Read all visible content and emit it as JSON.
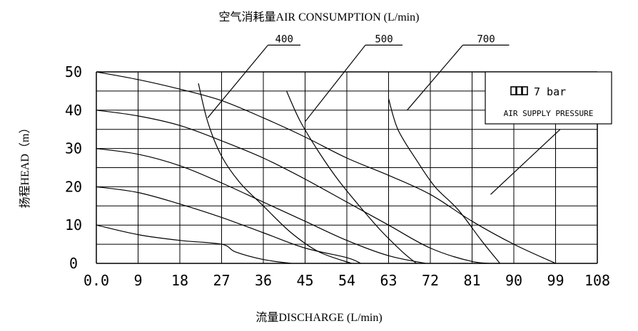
{
  "chart_data": {
    "type": "line",
    "title": "空气消耗量AIR CONSUMPTION (L/min)",
    "xlabel": "流量DISCHARGE (L/min)",
    "ylabel": "扬程HEAD（m）",
    "xlim": [
      0,
      108
    ],
    "ylim": [
      0,
      50
    ],
    "x_ticks": [
      "0.0",
      "9",
      "18",
      "27",
      "36",
      "45",
      "54",
      "63",
      "72",
      "81",
      "90",
      "99",
      "108"
    ],
    "y_ticks": [
      "0",
      "10",
      "20",
      "30",
      "40",
      "50"
    ],
    "grid": true,
    "pressure_series": [
      {
        "points": [
          [
            0,
            50
          ],
          [
            9,
            48
          ],
          [
            18,
            45.5
          ],
          [
            27,
            42.5
          ],
          [
            36,
            38
          ],
          [
            45,
            33
          ],
          [
            54,
            27.5
          ],
          [
            63,
            23
          ],
          [
            72,
            18
          ],
          [
            81,
            11
          ],
          [
            90,
            5
          ],
          [
            99,
            0
          ]
        ]
      },
      {
        "points": [
          [
            0,
            40
          ],
          [
            9,
            38.5
          ],
          [
            18,
            36
          ],
          [
            27,
            32
          ],
          [
            36,
            27.5
          ],
          [
            45,
            22
          ],
          [
            54,
            16
          ],
          [
            63,
            10
          ],
          [
            72,
            4
          ],
          [
            81,
            0.5
          ],
          [
            87,
            0
          ]
        ]
      },
      {
        "points": [
          [
            0,
            30
          ],
          [
            9,
            28.5
          ],
          [
            18,
            25.5
          ],
          [
            27,
            21
          ],
          [
            36,
            16
          ],
          [
            45,
            11
          ],
          [
            54,
            6
          ],
          [
            63,
            2
          ],
          [
            71,
            0
          ]
        ]
      },
      {
        "points": [
          [
            0,
            20
          ],
          [
            9,
            18.5
          ],
          [
            18,
            15.5
          ],
          [
            27,
            12
          ],
          [
            36,
            8
          ],
          [
            45,
            4
          ],
          [
            54,
            1.5
          ],
          [
            57,
            0
          ]
        ]
      },
      {
        "points": [
          [
            0,
            10
          ],
          [
            9,
            7.5
          ],
          [
            18,
            6
          ],
          [
            27,
            5
          ],
          [
            30,
            3
          ],
          [
            36,
            1
          ],
          [
            42,
            0
          ]
        ]
      }
    ],
    "consumption_series": [
      {
        "name": "400",
        "points": [
          [
            22,
            47
          ],
          [
            24,
            37
          ],
          [
            27,
            28
          ],
          [
            31,
            21
          ],
          [
            36,
            15
          ],
          [
            42,
            8
          ],
          [
            48,
            3
          ],
          [
            55,
            0
          ]
        ]
      },
      {
        "name": "500",
        "points": [
          [
            41,
            45
          ],
          [
            44,
            37
          ],
          [
            48,
            29
          ],
          [
            52,
            22
          ],
          [
            56,
            16
          ],
          [
            61,
            9
          ],
          [
            66,
            3
          ],
          [
            69,
            0
          ]
        ]
      },
      {
        "name": "700",
        "points": [
          [
            63,
            43
          ],
          [
            65,
            35
          ],
          [
            69,
            27
          ],
          [
            73,
            20
          ],
          [
            78,
            14
          ],
          [
            83,
            6
          ],
          [
            87,
            0
          ]
        ]
      }
    ],
    "consumption_callouts": [
      {
        "label": "400",
        "line_from": [
          37,
          57
        ],
        "line_to": [
          24,
          38
        ],
        "underline_to": [
          44,
          57
        ]
      },
      {
        "label": "500",
        "line_from": [
          58,
          57
        ],
        "line_to": [
          45,
          37
        ],
        "underline_to": [
          66,
          57
        ]
      },
      {
        "label": "700",
        "line_from": [
          79,
          57
        ],
        "line_to": [
          67,
          40
        ],
        "underline_to": [
          89,
          57
        ]
      }
    ],
    "legend_box": {
      "position": "top-right",
      "lines": [
        "7 bar",
        "AIR SUPPLY PRESSURE"
      ],
      "pointer_from": [
        100,
        35
      ],
      "pointer_to": [
        85,
        18
      ]
    }
  }
}
